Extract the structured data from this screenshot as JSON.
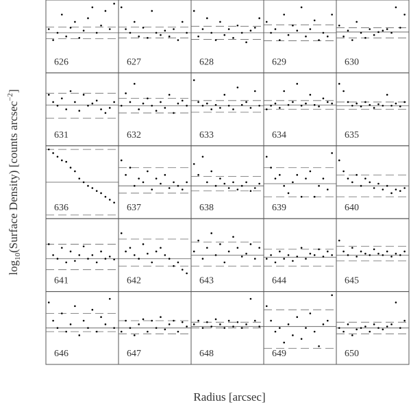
{
  "chart_data": {
    "type": "scatter",
    "xlabel": {
      "main": "Radius [arcsec]"
    },
    "ylabel": {
      "pre": "log",
      "sub": "10",
      "mid": "(Surface Density) [counts arcsec",
      "sup": "−2",
      "post": "]"
    },
    "xlim": [
      0,
      1
    ],
    "ylim": [
      0,
      1
    ],
    "color": "#000000",
    "x": [
      0.04,
      0.1,
      0.16,
      0.22,
      0.28,
      0.34,
      0.4,
      0.46,
      0.52,
      0.58,
      0.64,
      0.7,
      0.76,
      0.82,
      0.88,
      0.94
    ],
    "panels": [
      {
        "label": "626",
        "y": [
          0.6,
          0.45,
          0.55,
          0.8,
          0.5,
          0.62,
          0.7,
          0.48,
          0.58,
          0.75,
          0.9,
          0.55,
          0.65,
          0.85,
          0.6,
          0.95
        ],
        "solid": 0.55,
        "dashed": [
          0.47,
          0.63
        ]
      },
      {
        "label": "627",
        "y": [
          0.9,
          0.6,
          0.55,
          0.7,
          0.5,
          0.62,
          0.48,
          0.85,
          0.55,
          0.52,
          0.58,
          0.5,
          0.6,
          0.45,
          0.7,
          0.55
        ],
        "solid": 0.55,
        "dashed": [
          0.48,
          0.63
        ]
      },
      {
        "label": "628",
        "y": [
          0.85,
          0.5,
          0.6,
          0.75,
          0.55,
          0.45,
          0.7,
          0.52,
          0.6,
          0.48,
          0.65,
          0.55,
          0.42,
          0.58,
          0.62,
          0.75
        ],
        "solid": 0.55,
        "dashed": [
          0.46,
          0.64
        ]
      },
      {
        "label": "629",
        "y": [
          0.7,
          0.55,
          0.6,
          0.45,
          0.8,
          0.52,
          0.65,
          0.58,
          0.9,
          0.5,
          0.6,
          0.72,
          0.45,
          0.55,
          0.5,
          0.8
        ],
        "solid": 0.55,
        "dashed": [
          0.44,
          0.66
        ]
      },
      {
        "label": "630",
        "y": [
          0.65,
          0.5,
          0.58,
          0.45,
          0.7,
          0.55,
          0.48,
          0.6,
          0.52,
          0.56,
          0.58,
          0.6,
          0.55,
          0.9,
          0.62,
          0.8
        ],
        "solid": 0.56,
        "dashed": [
          0.48,
          0.62
        ]
      },
      {
        "label": "631",
        "y": [
          0.7,
          0.6,
          0.55,
          0.65,
          0.5,
          0.75,
          0.6,
          0.48,
          0.7,
          0.55,
          0.58,
          0.62,
          0.5,
          0.45,
          0.52,
          0.6
        ],
        "solid": 0.56,
        "dashed": [
          0.38,
          0.72
        ]
      },
      {
        "label": "632",
        "y": [
          0.55,
          0.72,
          0.6,
          0.85,
          0.5,
          0.58,
          0.65,
          0.55,
          0.48,
          0.6,
          0.52,
          0.7,
          0.45,
          0.58,
          0.62,
          0.55
        ],
        "solid": 0.55,
        "dashed": [
          0.45,
          0.65
        ]
      },
      {
        "label": "633",
        "y": [
          0.9,
          0.6,
          0.55,
          0.58,
          0.5,
          0.56,
          0.52,
          0.7,
          0.55,
          0.5,
          0.8,
          0.56,
          0.6,
          0.52,
          0.75,
          0.55
        ],
        "solid": 0.55,
        "dashed": [
          0.46,
          0.62
        ]
      },
      {
        "label": "634",
        "y": [
          0.5,
          0.55,
          0.58,
          0.52,
          0.75,
          0.56,
          0.6,
          0.85,
          0.55,
          0.58,
          0.7,
          0.56,
          0.54,
          0.65,
          0.6,
          0.58
        ],
        "solid": 0.56,
        "dashed": [
          0.5,
          0.62
        ]
      },
      {
        "label": "635",
        "y": [
          0.85,
          0.75,
          0.6,
          0.55,
          0.58,
          0.54,
          0.6,
          0.56,
          0.52,
          0.57,
          0.55,
          0.7,
          0.55,
          0.58,
          0.54,
          0.6
        ],
        "solid": 0.55,
        "dashed": [
          0.5,
          0.6
        ]
      },
      {
        "label": "636",
        "y": [
          0.95,
          0.9,
          0.85,
          0.8,
          0.78,
          0.7,
          0.65,
          0.55,
          0.5,
          0.45,
          0.42,
          0.38,
          0.35,
          0.3,
          0.26,
          0.22
        ],
        "solid": 0.5,
        "dashed": [
          0.05,
          0.95
        ]
      },
      {
        "label": "637",
        "y": [
          0.8,
          0.6,
          0.7,
          0.45,
          0.55,
          0.5,
          0.65,
          0.4,
          0.55,
          0.48,
          0.6,
          0.42,
          0.5,
          0.45,
          0.4,
          0.5
        ],
        "solid": 0.45,
        "dashed": [
          0.35,
          0.7
        ]
      },
      {
        "label": "638",
        "y": [
          0.75,
          0.6,
          0.85,
          0.5,
          0.65,
          0.45,
          0.55,
          0.48,
          0.42,
          0.5,
          0.4,
          0.45,
          0.5,
          0.38,
          0.42,
          0.48
        ],
        "solid": 0.45,
        "dashed": [
          0.38,
          0.58
        ]
      },
      {
        "label": "639",
        "y": [
          0.85,
          0.7,
          0.55,
          0.6,
          0.45,
          0.35,
          0.5,
          0.6,
          0.3,
          0.55,
          0.65,
          0.3,
          0.45,
          0.55,
          0.4,
          0.9
        ],
        "solid": 0.48,
        "dashed": [
          0.3,
          0.7
        ]
      },
      {
        "label": "640",
        "y": [
          0.8,
          0.65,
          0.55,
          0.5,
          0.6,
          0.45,
          0.55,
          0.5,
          0.42,
          0.48,
          0.4,
          0.45,
          0.35,
          0.4,
          0.38,
          0.42
        ],
        "solid": 0.45,
        "dashed": [
          0.3,
          0.6
        ]
      },
      {
        "label": "641",
        "y": [
          0.65,
          0.5,
          0.45,
          0.6,
          0.4,
          0.55,
          0.42,
          0.5,
          0.62,
          0.45,
          0.5,
          0.4,
          0.55,
          0.45,
          0.48,
          0.44
        ],
        "solid": 0.45,
        "dashed": [
          0.3,
          0.65
        ]
      },
      {
        "label": "642",
        "y": [
          0.8,
          0.55,
          0.6,
          0.5,
          0.45,
          0.65,
          0.52,
          0.4,
          0.55,
          0.6,
          0.5,
          0.45,
          0.35,
          0.4,
          0.3,
          0.25
        ],
        "solid": 0.45,
        "dashed": [
          0.35,
          0.72
        ]
      },
      {
        "label": "643",
        "y": [
          0.55,
          0.7,
          0.45,
          0.6,
          0.8,
          0.5,
          0.65,
          0.4,
          0.55,
          0.75,
          0.6,
          0.48,
          0.52,
          0.65,
          0.45,
          0.6
        ],
        "solid": 0.5,
        "dashed": [
          0.35,
          0.68
        ]
      },
      {
        "label": "644",
        "y": [
          0.45,
          0.5,
          0.4,
          0.55,
          0.45,
          0.5,
          0.42,
          0.48,
          0.6,
          0.45,
          0.52,
          0.5,
          0.58,
          0.48,
          0.55,
          0.5
        ],
        "solid": 0.47,
        "dashed": [
          0.35,
          0.58
        ]
      },
      {
        "label": "645",
        "y": [
          0.7,
          0.55,
          0.5,
          0.6,
          0.48,
          0.55,
          0.52,
          0.5,
          0.58,
          0.52,
          0.5,
          0.55,
          0.48,
          0.52,
          0.5,
          0.55
        ],
        "solid": 0.5,
        "dashed": [
          0.42,
          0.62
        ]
      },
      {
        "label": "646",
        "y": [
          0.85,
          0.6,
          0.5,
          0.7,
          0.45,
          0.55,
          0.8,
          0.4,
          0.6,
          0.5,
          0.75,
          0.45,
          0.65,
          0.55,
          0.9,
          0.5
        ],
        "solid": 0.5,
        "dashed": [
          0.45,
          0.7
        ]
      },
      {
        "label": "647",
        "y": [
          0.45,
          0.6,
          0.5,
          0.4,
          0.55,
          0.62,
          0.45,
          0.6,
          0.5,
          0.65,
          0.48,
          0.55,
          0.6,
          0.45,
          0.58,
          0.52
        ],
        "solid": 0.5,
        "dashed": [
          0.42,
          0.6
        ]
      },
      {
        "label": "648",
        "y": [
          0.55,
          0.6,
          0.5,
          0.58,
          0.52,
          0.62,
          0.55,
          0.5,
          0.6,
          0.52,
          0.58,
          0.5,
          0.55,
          0.9,
          0.6,
          0.52
        ],
        "solid": 0.52,
        "dashed": [
          0.5,
          0.58
        ]
      },
      {
        "label": "649",
        "y": [
          0.8,
          0.6,
          0.45,
          0.5,
          0.3,
          0.55,
          0.4,
          0.65,
          0.35,
          0.5,
          0.7,
          0.45,
          0.25,
          0.55,
          0.6,
          0.95
        ],
        "solid": 0.52,
        "dashed": [
          0.22,
          0.75
        ]
      },
      {
        "label": "650",
        "y": [
          0.5,
          0.45,
          0.55,
          0.4,
          0.48,
          0.5,
          0.52,
          0.45,
          0.55,
          0.5,
          0.48,
          0.52,
          0.55,
          0.85,
          0.5,
          0.6
        ],
        "solid": 0.5,
        "dashed": [
          0.42,
          0.58
        ]
      }
    ]
  }
}
